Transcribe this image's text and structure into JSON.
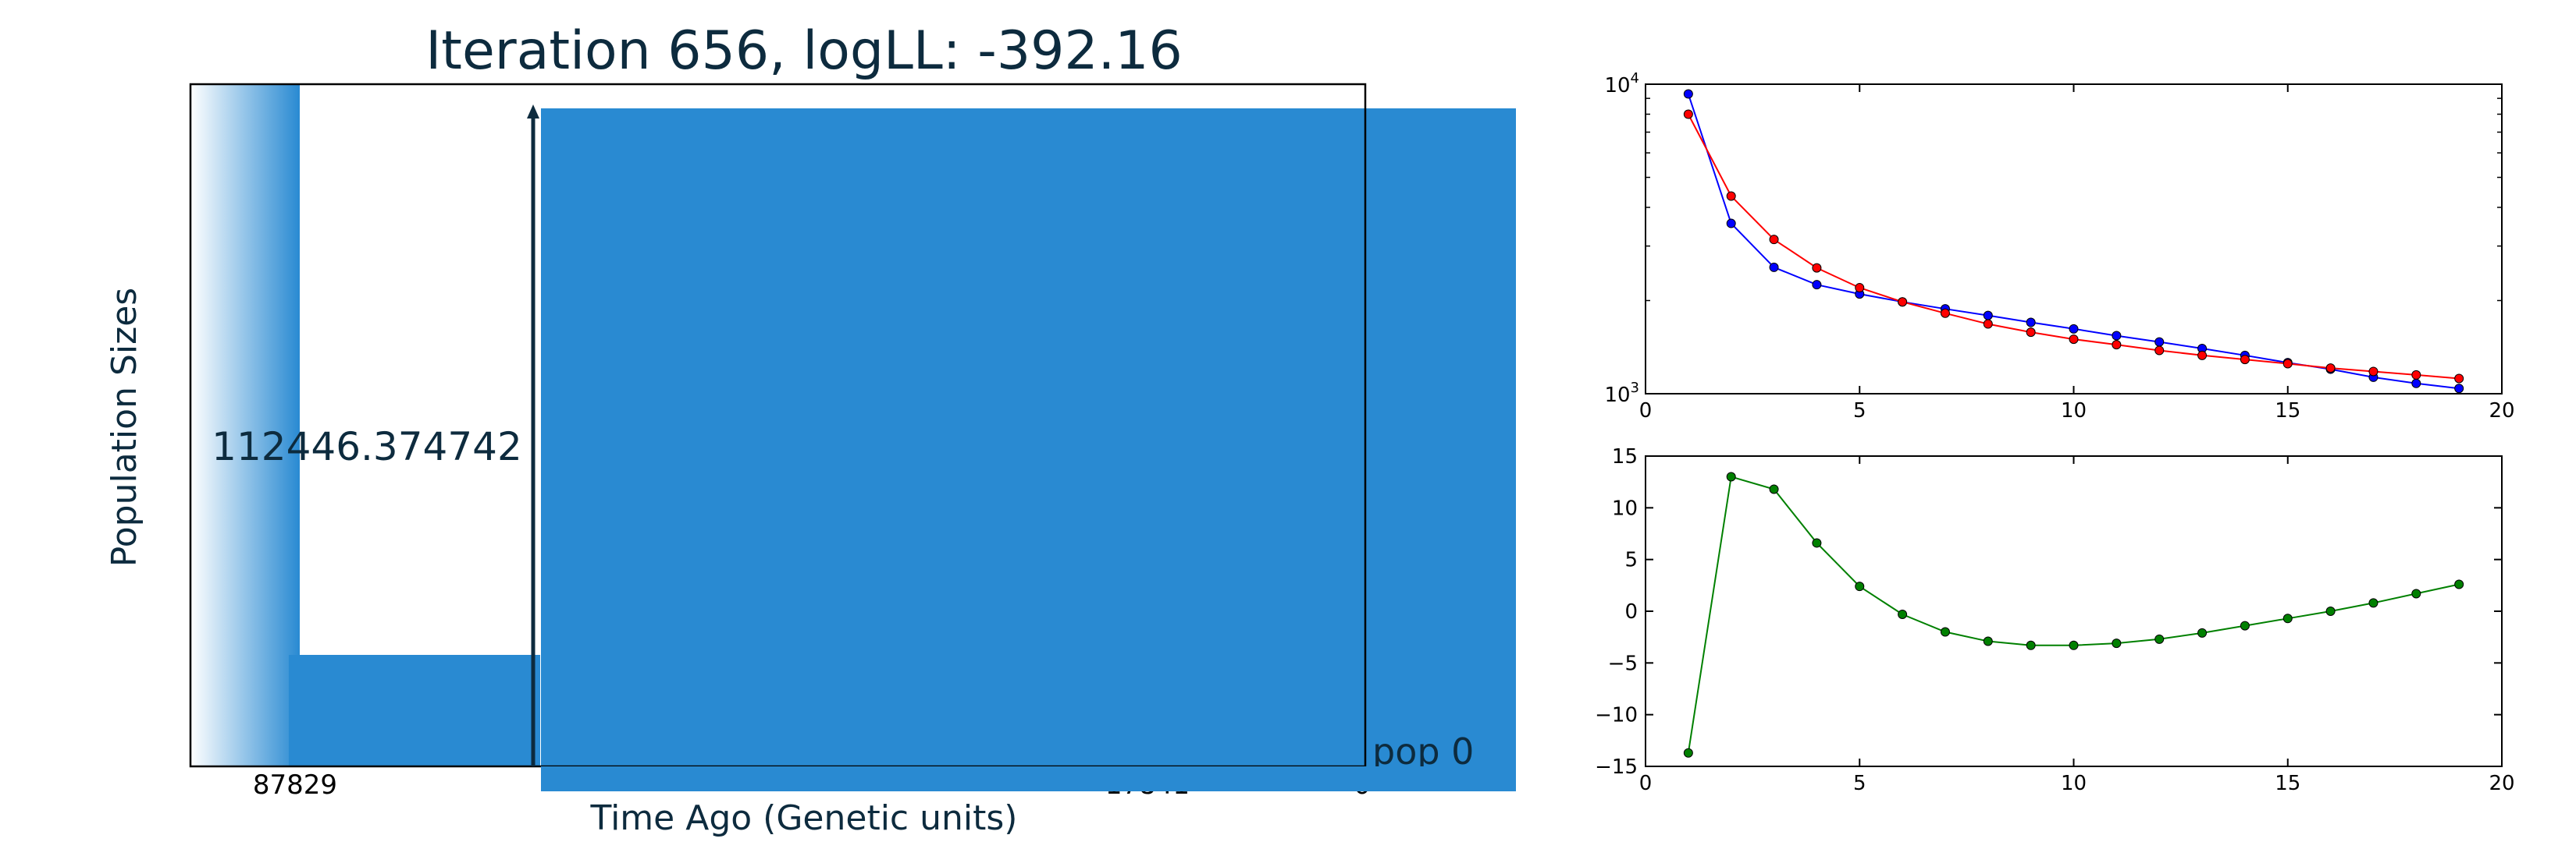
{
  "main_plot": {
    "title": "Iteration 656, logLL:    -392.16",
    "ylabel": "Population Sizes",
    "xlabel": "Time Ago (Genetic units)",
    "size_label": "112446.374742",
    "pop_label": "pop 0",
    "x_ticks": [
      "87829",
      "17841",
      "0"
    ],
    "fill_color": "#298ad2",
    "text_color": "#0d2b3e"
  },
  "chart_data": [
    {
      "type": "line",
      "title": "",
      "xlabel": "",
      "ylabel": "",
      "yscale": "log",
      "xlim": [
        0,
        20
      ],
      "ylim": [
        1000,
        10000
      ],
      "x_ticks": [
        "0",
        "5",
        "10",
        "15",
        "20"
      ],
      "y_ticks": [
        "10^3",
        "10^4"
      ],
      "grid": false,
      "x": [
        1,
        2,
        3,
        4,
        5,
        6,
        7,
        8,
        9,
        10,
        11,
        12,
        13,
        14,
        15,
        16,
        17,
        18,
        19
      ],
      "series": [
        {
          "color": "#0000ff",
          "values": [
            9300,
            3550,
            2560,
            2250,
            2100,
            1980,
            1880,
            1790,
            1700,
            1620,
            1540,
            1470,
            1400,
            1330,
            1260,
            1200,
            1130,
            1080,
            1040
          ]
        },
        {
          "color": "#ff0000",
          "values": [
            8000,
            4350,
            3150,
            2550,
            2200,
            1980,
            1820,
            1680,
            1580,
            1500,
            1440,
            1380,
            1330,
            1290,
            1250,
            1210,
            1180,
            1150,
            1120
          ]
        }
      ]
    },
    {
      "type": "line",
      "title": "",
      "xlabel": "",
      "ylabel": "",
      "xlim": [
        0,
        20
      ],
      "ylim": [
        -15,
        15
      ],
      "x_ticks": [
        "0",
        "5",
        "10",
        "15",
        "20"
      ],
      "y_ticks": [
        "15",
        "10",
        "5",
        "0",
        "−5",
        "−10",
        "−15"
      ],
      "grid": false,
      "x": [
        1,
        2,
        3,
        4,
        5,
        6,
        7,
        8,
        9,
        10,
        11,
        12,
        13,
        14,
        15,
        16,
        17,
        18,
        19
      ],
      "series": [
        {
          "color": "#008000",
          "values": [
            -13.7,
            13.0,
            11.8,
            6.6,
            2.4,
            -0.3,
            -2.0,
            -2.9,
            -3.3,
            -3.3,
            -3.1,
            -2.7,
            -2.1,
            -1.4,
            -0.7,
            0.0,
            0.8,
            1.7,
            2.6
          ]
        }
      ]
    }
  ]
}
